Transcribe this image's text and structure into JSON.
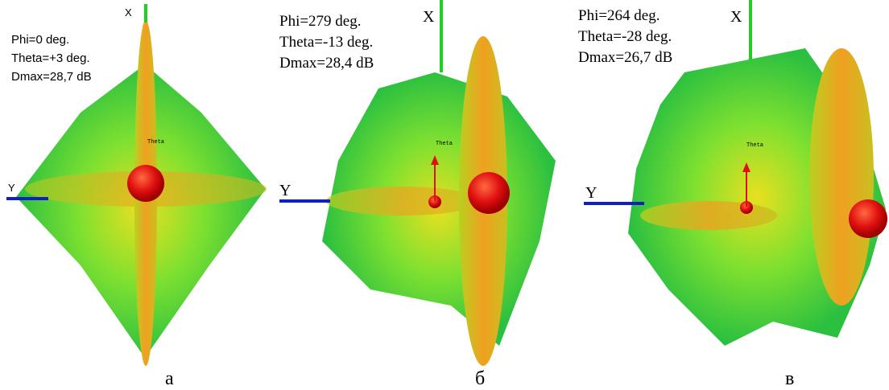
{
  "panels": [
    {
      "caption": "а",
      "axis_x": "X",
      "axis_y": "Y",
      "theta": "Theta",
      "info": [
        "Phi=0 deg.",
        "Theta=+3 deg.",
        "Dmax=28,7 dB"
      ]
    },
    {
      "caption": "б",
      "axis_x": "X",
      "axis_y": "Y",
      "theta": "Theta",
      "info": [
        "Phi=279 deg.",
        "Theta=-13 deg.",
        "Dmax=28,4 dB"
      ]
    },
    {
      "caption": "в",
      "axis_x": "X",
      "axis_y": "Y",
      "theta": "Theta",
      "info": [
        "Phi=264 deg.",
        "Theta=-28 deg.",
        "Dmax=26,7 dB"
      ]
    }
  ]
}
